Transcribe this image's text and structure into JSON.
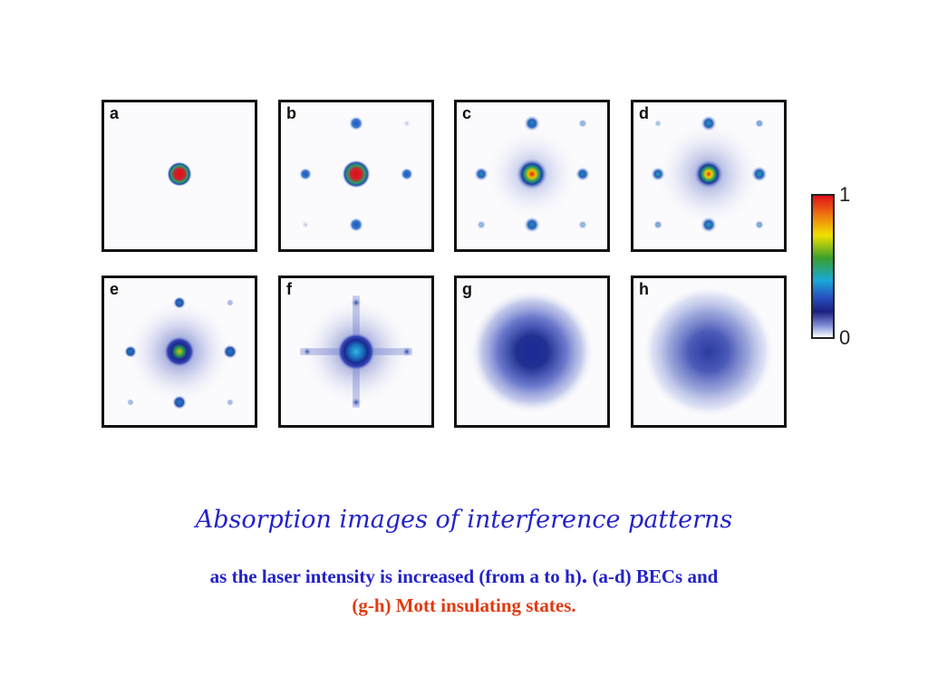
{
  "panels": [
    {
      "letter": "a"
    },
    {
      "letter": "b"
    },
    {
      "letter": "c"
    },
    {
      "letter": "d"
    },
    {
      "letter": "e"
    },
    {
      "letter": "f"
    },
    {
      "letter": "g"
    },
    {
      "letter": "h"
    }
  ],
  "colorbar": {
    "max_label": "1",
    "min_label": "0"
  },
  "caption": {
    "title": "Absorption images of interference patterns",
    "line1_part1": "as the laser intensity is increased (from a to h)",
    "line1_sep": ".",
    "line1_part2": " (a-d) BECs and",
    "line2": "(g-h) Mott insulating states."
  },
  "colors": {
    "caption_blue": "#2323c8",
    "caption_red": "#e03a12"
  }
}
